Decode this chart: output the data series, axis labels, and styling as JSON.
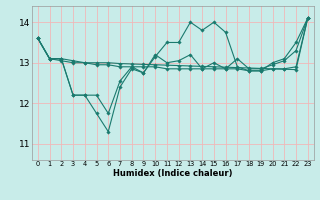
{
  "background_color": "#c8ece9",
  "grid_color": "#f0b8b8",
  "line_color": "#1a7a6e",
  "xlabel": "Humidex (Indice chaleur)",
  "ylim": [
    10.6,
    14.4
  ],
  "xlim": [
    -0.5,
    23.5
  ],
  "yticks": [
    11,
    12,
    13,
    14
  ],
  "xticks": [
    0,
    1,
    2,
    3,
    4,
    5,
    6,
    7,
    8,
    9,
    10,
    11,
    12,
    13,
    14,
    15,
    16,
    17,
    18,
    19,
    20,
    21,
    22,
    23
  ],
  "series": [
    [
      13.6,
      13.1,
      13.1,
      12.2,
      12.2,
      11.75,
      11.3,
      12.4,
      12.85,
      12.75,
      13.15,
      13.5,
      13.5,
      14.0,
      13.8,
      14.0,
      13.75,
      12.9,
      12.8,
      12.8,
      13.0,
      13.1,
      13.5,
      14.1
    ],
    [
      13.6,
      13.1,
      13.1,
      13.05,
      13.0,
      12.95,
      12.95,
      12.9,
      12.9,
      12.9,
      12.9,
      12.85,
      12.85,
      12.85,
      12.85,
      12.85,
      12.85,
      12.85,
      12.8,
      12.8,
      12.85,
      12.85,
      12.9,
      14.1
    ],
    [
      13.6,
      13.1,
      13.05,
      13.0,
      13.0,
      13.0,
      13.0,
      12.98,
      12.97,
      12.96,
      12.95,
      12.94,
      12.93,
      12.92,
      12.91,
      12.9,
      12.89,
      12.88,
      12.87,
      12.86,
      12.85,
      12.84,
      12.83,
      14.1
    ],
    [
      13.6,
      13.1,
      13.1,
      12.2,
      12.2,
      12.2,
      11.75,
      12.55,
      12.9,
      12.75,
      13.2,
      13.0,
      13.05,
      13.2,
      12.85,
      13.0,
      12.85,
      13.1,
      12.85,
      12.85,
      12.95,
      13.05,
      13.3,
      14.1
    ]
  ]
}
